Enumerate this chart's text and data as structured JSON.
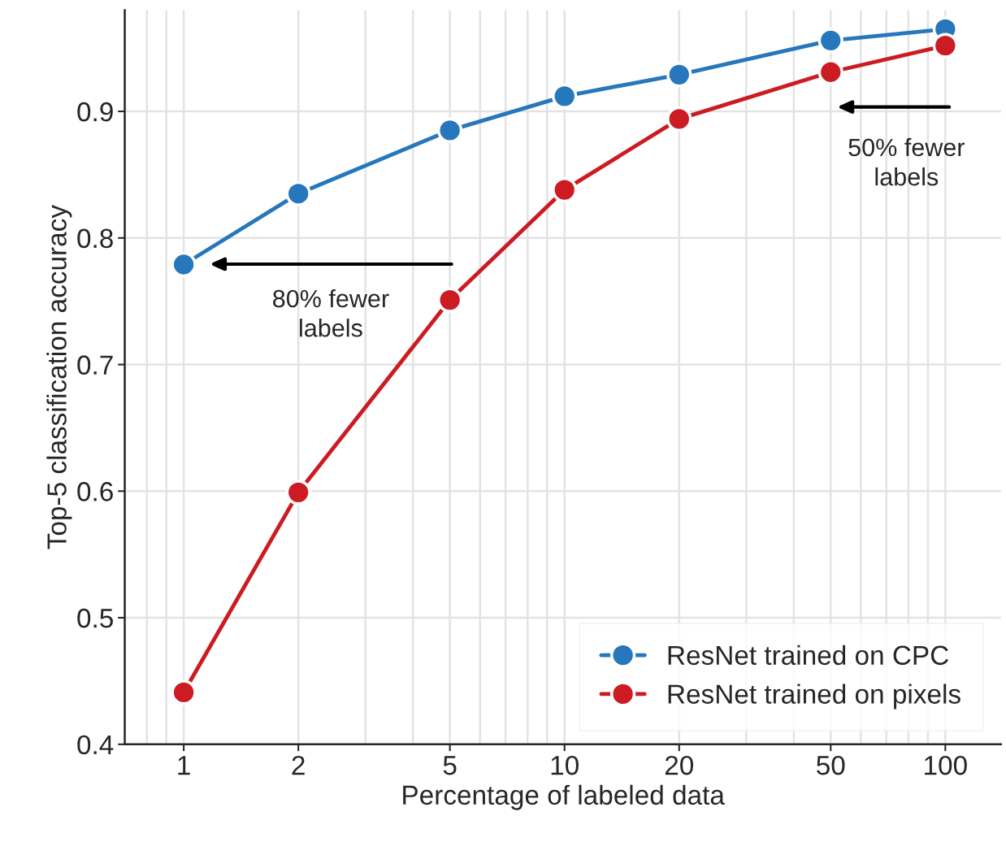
{
  "chart_data": {
    "type": "line",
    "xlabel": "Percentage of labeled data",
    "ylabel": "Top-5 classification accuracy",
    "x": [
      1,
      2,
      5,
      10,
      20,
      50,
      100
    ],
    "series": [
      {
        "name": "ResNet trained on CPC",
        "color": "#2677bb",
        "values": [
          0.779,
          0.835,
          0.885,
          0.912,
          0.929,
          0.956,
          0.965
        ]
      },
      {
        "name": "ResNet trained on pixels",
        "color": "#cc1b22",
        "values": [
          0.441,
          0.599,
          0.751,
          0.838,
          0.894,
          0.931,
          0.952
        ]
      }
    ],
    "log": "x",
    "xlim": [
      0.7,
      140
    ],
    "xticks": [
      1,
      2,
      5,
      10,
      20,
      50,
      100
    ],
    "ylim": [
      0.4,
      0.98
    ],
    "yticks": [
      0.4,
      0.5,
      0.6,
      0.7,
      0.8,
      0.9
    ],
    "grid": true,
    "legend": "bottom right",
    "marker": "circle",
    "line_style": "solid",
    "annotations": [
      "80% fewer\nlabels",
      "50% fewer\nlabels"
    ]
  }
}
